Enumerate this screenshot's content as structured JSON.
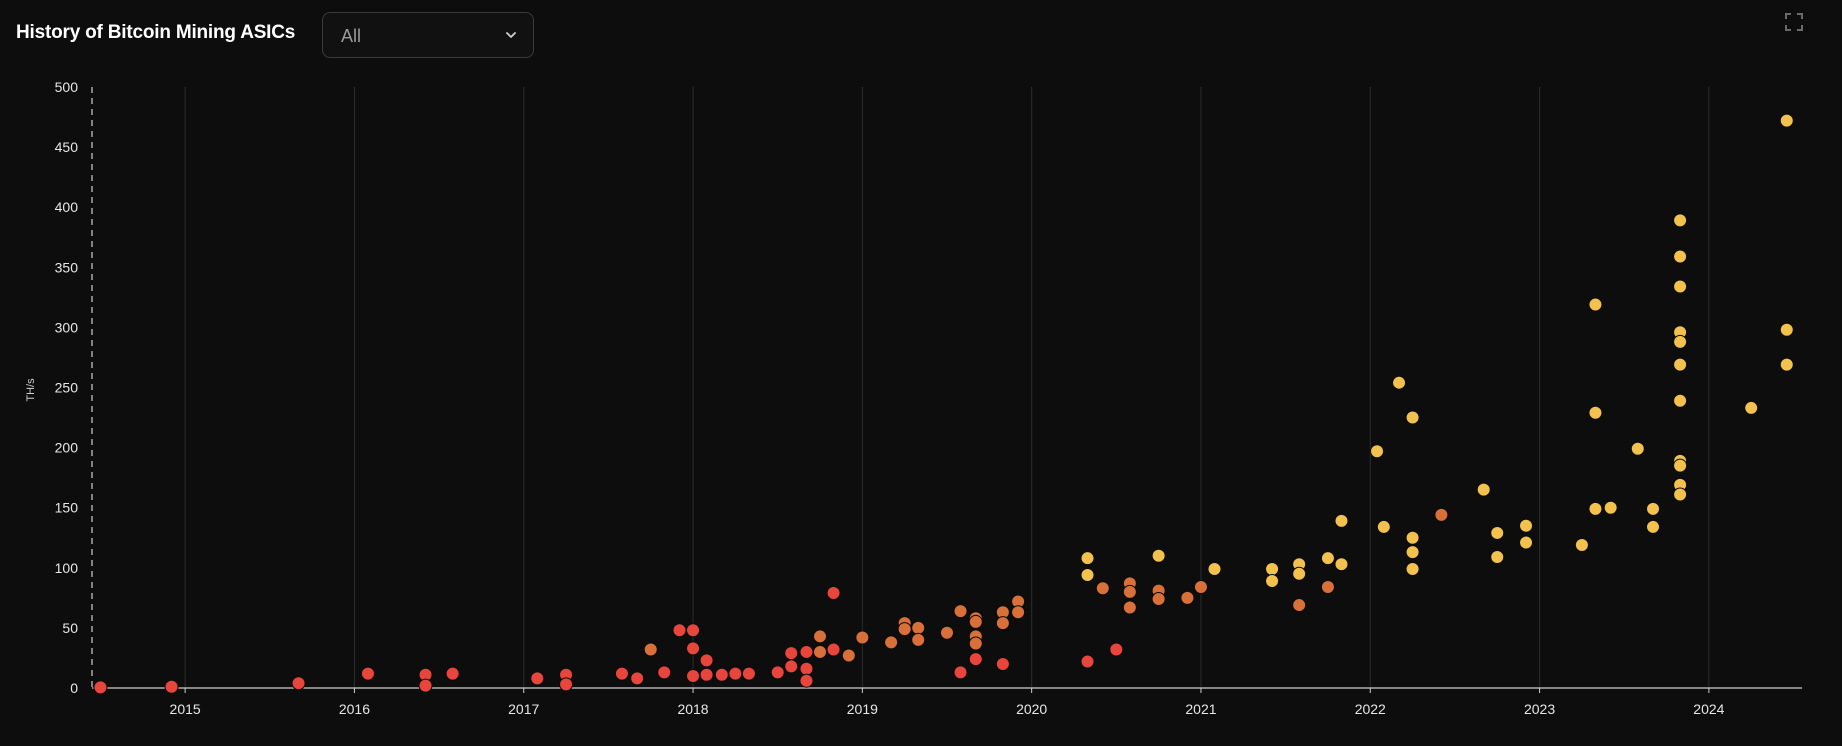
{
  "header": {
    "title": "History of Bitcoin Mining ASICs",
    "filter": {
      "selected": "All",
      "icon": "chevron-down-icon"
    },
    "expand_icon": "expand-icon"
  },
  "colors": {
    "background": "#0d0d0d",
    "grid": "#2c2c2c",
    "axis": "#cfcfcf",
    "red": "#e8453c",
    "orange": "#d9703a",
    "yellow": "#f2c14e"
  },
  "chart_data": {
    "type": "scatter",
    "xlabel": "",
    "ylabel": "TH/s",
    "xlim": [
      2014.45,
      2024.55
    ],
    "ylim": [
      0,
      500
    ],
    "x_ticks": [
      2015,
      2016,
      2017,
      2018,
      2019,
      2020,
      2021,
      2022,
      2023,
      2024
    ],
    "y_ticks": [
      0,
      50,
      100,
      150,
      200,
      250,
      300,
      350,
      400,
      450,
      500
    ],
    "grid": "vertical",
    "legend": "none",
    "series": [
      {
        "color": "red",
        "points": [
          [
            2014.5,
            0.5
          ],
          [
            2014.92,
            1
          ],
          [
            2015.67,
            4
          ],
          [
            2016.08,
            12
          ],
          [
            2016.42,
            11
          ],
          [
            2016.42,
            2
          ],
          [
            2016.58,
            12
          ],
          [
            2017.08,
            8
          ],
          [
            2017.25,
            11
          ],
          [
            2017.25,
            3
          ],
          [
            2017.58,
            12
          ],
          [
            2017.67,
            8
          ],
          [
            2017.83,
            13
          ],
          [
            2017.92,
            48
          ],
          [
            2018.0,
            48
          ],
          [
            2018.0,
            33
          ],
          [
            2018.0,
            10
          ],
          [
            2018.08,
            23
          ],
          [
            2018.08,
            11
          ],
          [
            2018.17,
            11
          ],
          [
            2018.25,
            12
          ],
          [
            2018.33,
            12
          ],
          [
            2018.5,
            13
          ],
          [
            2018.58,
            29
          ],
          [
            2018.58,
            18
          ],
          [
            2018.67,
            30
          ],
          [
            2018.67,
            16
          ],
          [
            2018.67,
            6
          ],
          [
            2018.83,
            32
          ],
          [
            2018.83,
            79
          ],
          [
            2019.58,
            13
          ],
          [
            2019.67,
            24
          ],
          [
            2019.83,
            20
          ],
          [
            2020.33,
            22
          ],
          [
            2020.5,
            32
          ]
        ]
      },
      {
        "color": "orange",
        "points": [
          [
            2017.75,
            32
          ],
          [
            2018.75,
            43
          ],
          [
            2018.75,
            30
          ],
          [
            2018.92,
            27
          ],
          [
            2019.0,
            42
          ],
          [
            2019.17,
            38
          ],
          [
            2019.25,
            54
          ],
          [
            2019.25,
            49
          ],
          [
            2019.33,
            50
          ],
          [
            2019.33,
            40
          ],
          [
            2019.5,
            46
          ],
          [
            2019.58,
            64
          ],
          [
            2019.67,
            58
          ],
          [
            2019.67,
            55
          ],
          [
            2019.67,
            43
          ],
          [
            2019.67,
            37
          ],
          [
            2019.83,
            63
          ],
          [
            2019.83,
            54
          ],
          [
            2019.92,
            72
          ],
          [
            2019.92,
            63
          ],
          [
            2020.42,
            83
          ],
          [
            2020.58,
            87
          ],
          [
            2020.58,
            80
          ],
          [
            2020.58,
            67
          ],
          [
            2020.75,
            81
          ],
          [
            2020.75,
            74
          ],
          [
            2020.92,
            75
          ],
          [
            2021.0,
            84
          ],
          [
            2021.58,
            69
          ],
          [
            2021.75,
            84
          ],
          [
            2022.42,
            144
          ]
        ]
      },
      {
        "color": "yellow",
        "points": [
          [
            2020.33,
            108
          ],
          [
            2020.33,
            94
          ],
          [
            2020.75,
            110
          ],
          [
            2021.08,
            99
          ],
          [
            2021.42,
            99
          ],
          [
            2021.42,
            89
          ],
          [
            2021.58,
            103
          ],
          [
            2021.58,
            95
          ],
          [
            2021.75,
            108
          ],
          [
            2021.83,
            103
          ],
          [
            2021.83,
            139
          ],
          [
            2022.04,
            197
          ],
          [
            2022.08,
            134
          ],
          [
            2022.17,
            254
          ],
          [
            2022.25,
            225
          ],
          [
            2022.25,
            125
          ],
          [
            2022.25,
            113
          ],
          [
            2022.25,
            99
          ],
          [
            2022.67,
            165
          ],
          [
            2022.75,
            129
          ],
          [
            2022.75,
            109
          ],
          [
            2022.92,
            135
          ],
          [
            2022.92,
            121
          ],
          [
            2023.25,
            119
          ],
          [
            2023.33,
            319
          ],
          [
            2023.33,
            229
          ],
          [
            2023.33,
            149
          ],
          [
            2023.42,
            150
          ],
          [
            2023.58,
            199
          ],
          [
            2023.67,
            149
          ],
          [
            2023.67,
            134
          ],
          [
            2023.83,
            389
          ],
          [
            2023.83,
            359
          ],
          [
            2023.83,
            334
          ],
          [
            2023.83,
            296
          ],
          [
            2023.83,
            288
          ],
          [
            2023.83,
            269
          ],
          [
            2023.83,
            239
          ],
          [
            2023.83,
            189
          ],
          [
            2023.83,
            185
          ],
          [
            2023.83,
            169
          ],
          [
            2023.83,
            161
          ],
          [
            2024.25,
            233
          ],
          [
            2024.46,
            472
          ],
          [
            2024.46,
            298
          ],
          [
            2024.46,
            269
          ]
        ]
      }
    ]
  }
}
